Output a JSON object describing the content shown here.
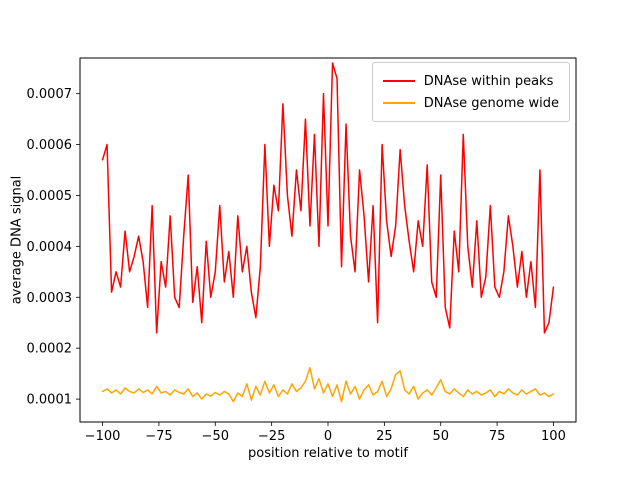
{
  "figure": {
    "background": "#ffffff"
  },
  "chart_data": {
    "type": "line",
    "title": "",
    "xlabel": "position relative to motif",
    "ylabel": "average DNA signal",
    "grid": false,
    "legend_position": "upper right",
    "xlim": [
      -110,
      110
    ],
    "ylim": [
      5.5e-05,
      0.00077
    ],
    "x_ticks": [
      -100,
      -75,
      -50,
      -25,
      0,
      25,
      50,
      75,
      100
    ],
    "x_tick_labels": [
      "−100",
      "−75",
      "−50",
      "−25",
      "0",
      "25",
      "50",
      "75",
      "100"
    ],
    "y_ticks": [
      0.0001,
      0.0002,
      0.0003,
      0.0004,
      0.0005,
      0.0006,
      0.0007
    ],
    "y_tick_labels": [
      "0.0001",
      "0.0002",
      "0.0003",
      "0.0004",
      "0.0005",
      "0.0006",
      "0.0007"
    ],
    "x": [
      -100,
      -98,
      -96,
      -94,
      -92,
      -90,
      -88,
      -86,
      -84,
      -82,
      -80,
      -78,
      -76,
      -74,
      -72,
      -70,
      -68,
      -66,
      -64,
      -62,
      -60,
      -58,
      -56,
      -54,
      -52,
      -50,
      -48,
      -46,
      -44,
      -42,
      -40,
      -38,
      -36,
      -34,
      -32,
      -30,
      -28,
      -26,
      -24,
      -22,
      -20,
      -18,
      -16,
      -14,
      -12,
      -10,
      -8,
      -6,
      -4,
      -2,
      0,
      2,
      4,
      6,
      8,
      10,
      12,
      14,
      16,
      18,
      20,
      22,
      24,
      26,
      28,
      30,
      32,
      34,
      36,
      38,
      40,
      42,
      44,
      46,
      48,
      50,
      52,
      54,
      56,
      58,
      60,
      62,
      64,
      66,
      68,
      70,
      72,
      74,
      76,
      78,
      80,
      82,
      84,
      86,
      88,
      90,
      92,
      94,
      96,
      98,
      100
    ],
    "series": [
      {
        "name": "DNAse within peaks",
        "color": "#ff0000",
        "values": [
          0.00057,
          0.0006,
          0.00031,
          0.00035,
          0.00032,
          0.00043,
          0.00035,
          0.00038,
          0.00042,
          0.00037,
          0.00028,
          0.00048,
          0.00023,
          0.00037,
          0.00032,
          0.00046,
          0.0003,
          0.00028,
          0.00042,
          0.00054,
          0.00029,
          0.00036,
          0.00025,
          0.00041,
          0.0003,
          0.00035,
          0.00048,
          0.00033,
          0.00039,
          0.0003,
          0.00046,
          0.00035,
          0.0004,
          0.00031,
          0.00026,
          0.00036,
          0.0006,
          0.0004,
          0.00052,
          0.00047,
          0.00068,
          0.0005,
          0.00042,
          0.00055,
          0.00047,
          0.00065,
          0.00044,
          0.00062,
          0.0004,
          0.0007,
          0.00044,
          0.00076,
          0.00073,
          0.00036,
          0.00064,
          0.00042,
          0.00035,
          0.00055,
          0.00046,
          0.00033,
          0.00048,
          0.00025,
          0.0006,
          0.00045,
          0.00038,
          0.00044,
          0.00059,
          0.00048,
          0.00041,
          0.00035,
          0.00045,
          0.0004,
          0.00056,
          0.00033,
          0.0003,
          0.00054,
          0.00028,
          0.00024,
          0.00043,
          0.00035,
          0.00062,
          0.0004,
          0.00032,
          0.00045,
          0.0003,
          0.00034,
          0.00048,
          0.00032,
          0.0003,
          0.00035,
          0.00046,
          0.0004,
          0.00032,
          0.00039,
          0.0003,
          0.00037,
          0.00028,
          0.00055,
          0.00023,
          0.00025,
          0.00032
        ]
      },
      {
        "name": "DNAse genome wide",
        "color": "#ffa500",
        "values": [
          0.000115,
          0.00012,
          0.000112,
          0.000118,
          0.00011,
          0.000122,
          0.000115,
          0.000112,
          0.00012,
          0.000113,
          0.000118,
          0.00011,
          0.000125,
          0.000112,
          0.000115,
          0.000108,
          0.000118,
          0.000113,
          0.00011,
          0.00012,
          0.000105,
          0.000112,
          0.0001,
          0.00011,
          0.000106,
          0.000113,
          0.000108,
          0.000115,
          0.00011,
          9.5e-05,
          0.000112,
          0.000105,
          0.00013,
          9.8e-05,
          0.000125,
          0.000108,
          0.000135,
          0.000112,
          0.000128,
          0.000105,
          0.000118,
          0.00011,
          0.00013,
          0.000115,
          0.000122,
          0.000135,
          0.000162,
          0.00012,
          0.00014,
          0.000112,
          0.00013,
          0.000105,
          0.000128,
          9.5e-05,
          0.000135,
          0.00011,
          0.000125,
          0.0001,
          0.000118,
          0.000128,
          0.000108,
          0.000115,
          0.000135,
          0.000105,
          0.00012,
          0.000148,
          0.000155,
          0.000118,
          0.00011,
          0.000125,
          0.0001,
          0.000112,
          0.000118,
          0.000108,
          0.000122,
          0.000138,
          0.000115,
          0.00011,
          0.00012,
          0.000112,
          0.000105,
          0.000118,
          0.00011,
          0.000115,
          0.000108,
          0.000112,
          0.000118,
          0.000105,
          0.000115,
          0.00011,
          0.00012,
          0.000112,
          0.000108,
          0.000118,
          0.00011,
          0.000115,
          0.00012,
          0.000108,
          0.000112,
          0.000105,
          0.00011
        ]
      }
    ]
  }
}
